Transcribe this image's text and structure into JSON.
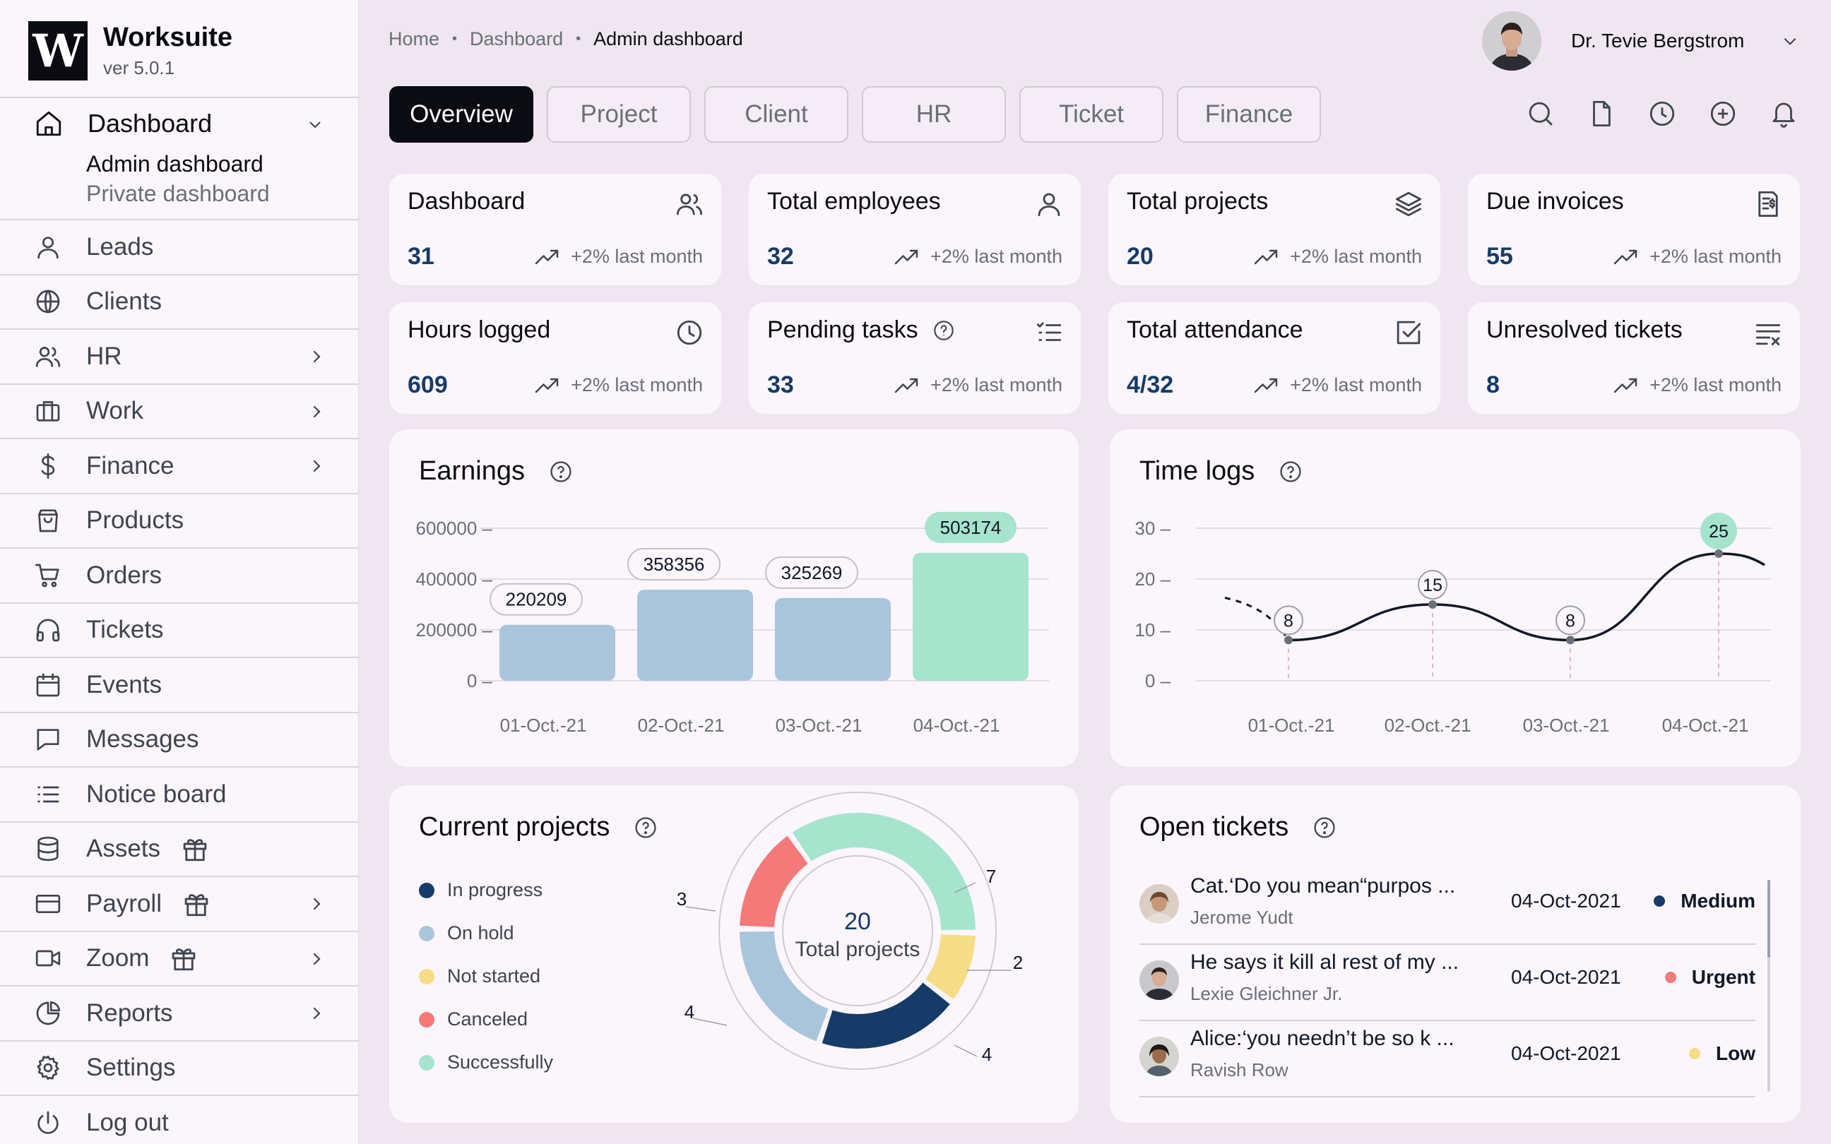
{
  "app": {
    "name": "Worksuite",
    "version": "ver 5.0.1",
    "logo_letter": "W"
  },
  "sidebar": {
    "dashboard": {
      "label": "Dashboard",
      "sub": [
        "Admin dashboard",
        "Private dashboard"
      ]
    },
    "items": [
      {
        "label": "Leads",
        "icon": "user-icon"
      },
      {
        "label": "Clients",
        "icon": "globe-icon"
      },
      {
        "label": "HR",
        "icon": "users-icon",
        "chevron": true
      },
      {
        "label": "Work",
        "icon": "briefcase-icon",
        "chevron": true
      },
      {
        "label": "Finance",
        "icon": "dollar-icon",
        "chevron": true
      },
      {
        "label": "Products",
        "icon": "shopping-bag-icon"
      },
      {
        "label": "Orders",
        "icon": "cart-icon"
      },
      {
        "label": "Tickets",
        "icon": "headphones-icon"
      },
      {
        "label": "Events",
        "icon": "calendar-icon"
      },
      {
        "label": "Messages",
        "icon": "message-icon"
      },
      {
        "label": "Notice board",
        "icon": "list-icon"
      },
      {
        "label": "Assets",
        "icon": "database-icon",
        "gift": true
      },
      {
        "label": "Payroll",
        "icon": "credit-card-icon",
        "gift": true,
        "chevron": true
      },
      {
        "label": "Zoom",
        "icon": "video-icon",
        "gift": true,
        "chevron": true
      },
      {
        "label": "Reports",
        "icon": "pie-icon",
        "chevron": true
      },
      {
        "label": "Settings",
        "icon": "gear-icon"
      },
      {
        "label": "Log out",
        "icon": "power-icon"
      }
    ]
  },
  "breadcrumb": {
    "items": [
      "Home",
      "Dashboard"
    ],
    "current": "Admin dashboard"
  },
  "user": {
    "name": "Dr. Tevie Bergstrom"
  },
  "tabs": [
    "Overview",
    "Project",
    "Client",
    "HR",
    "Ticket",
    "Finance"
  ],
  "toolbar": [
    "search-icon",
    "file-icon",
    "clock-icon",
    "plus-circle-icon",
    "bell-icon"
  ],
  "stats": [
    {
      "title": "Dashboard",
      "value": "31",
      "trend": "+2% last month",
      "icon": "users-icon"
    },
    {
      "title": "Total employees",
      "value": "32",
      "trend": "+2% last month",
      "icon": "user-icon"
    },
    {
      "title": "Total projects",
      "value": "20",
      "trend": "+2% last month",
      "icon": "layers-icon"
    },
    {
      "title": "Due invoices",
      "value": "55",
      "trend": "+2% last month",
      "icon": "invoice-icon"
    },
    {
      "title": "Hours logged",
      "value": "609",
      "trend": "+2% last month",
      "icon": "clock-icon"
    },
    {
      "title": "Pending tasks",
      "value": "33",
      "trend": "+2% last month",
      "icon": "task-list-icon",
      "help": true
    },
    {
      "title": "Total attendance",
      "value": "4/32",
      "trend": "+2% last month",
      "icon": "check-square-icon"
    },
    {
      "title": "Unresolved tickets",
      "value": "8",
      "trend": "+2% last month",
      "icon": "clear-list-icon"
    }
  ],
  "panels": {
    "earnings": "Earnings",
    "timelogs": "Time logs",
    "projects": "Current projects",
    "tickets": "Open tickets"
  },
  "colors": {
    "navy": "#163b68",
    "bar": "#a9c5db",
    "bar_highlight": "#a6e4cd",
    "green": "#a6e4cd",
    "yellow": "#f7dc86",
    "red": "#f47a7a",
    "light_blue": "#a9c5db"
  },
  "chart_data": [
    {
      "type": "bar",
      "categories": [
        "01-Oct.-21",
        "02-Oct.-21",
        "03-Oct.-21",
        "04-Oct.-21"
      ],
      "values": [
        220209,
        358356,
        325269,
        503174
      ],
      "ylim": [
        0,
        600000
      ],
      "yticks": [
        0,
        200000,
        400000,
        600000
      ],
      "highlight_index": 3,
      "grid": true
    },
    {
      "type": "line",
      "categories": [
        "01-Oct.-21",
        "02-Oct.-21",
        "03-Oct.-21",
        "04-Oct.-21"
      ],
      "values": [
        8,
        15,
        8,
        25
      ],
      "ylim": [
        0,
        30
      ],
      "yticks": [
        0,
        10,
        20,
        30
      ],
      "highlight_index": 3,
      "grid": true
    },
    {
      "type": "pie",
      "style": "donut",
      "center_value": "20",
      "center_label": "Total projects",
      "labels": [
        "In progress",
        "On hold",
        "Not started",
        "Canceled",
        "Successfully"
      ],
      "values": [
        4,
        4,
        2,
        3,
        7
      ],
      "colors": [
        "#163b68",
        "#a9c5db",
        "#f7dc86",
        "#f47a7a",
        "#a6e4cd"
      ]
    }
  ],
  "tickets": [
    {
      "subject": "Cat.‘Do you mean“purpos ...",
      "person": "Jerome Yudt",
      "date": "04-Oct-2021",
      "priority": "Medium",
      "color": "#163b68"
    },
    {
      "subject": "He says it kill al rest of my ...",
      "person": "Lexie Gleichner Jr.",
      "date": "04-Oct-2021",
      "priority": "Urgent",
      "color": "#f47a7a"
    },
    {
      "subject": "Alice:‘you needn’t be so k ...",
      "person": "Ravish Row",
      "date": "04-Oct-2021",
      "priority": "Low",
      "color": "#f7dc86"
    }
  ]
}
